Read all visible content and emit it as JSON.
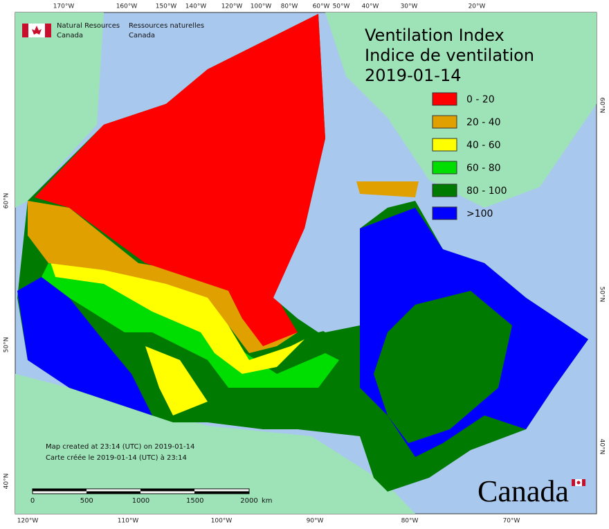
{
  "agency": {
    "en_name": "Natural Resources",
    "en_country": "Canada",
    "fr_name": "Ressources naturelles",
    "fr_country": "Canada"
  },
  "title": {
    "line1": "Ventilation Index",
    "line2": "Indice de ventilation",
    "date": "2019-01-14"
  },
  "legend": [
    {
      "label": "0 - 20",
      "color": "#ff0000"
    },
    {
      "label": "20 - 40",
      "color": "#e0a000"
    },
    {
      "label": "40 - 60",
      "color": "#ffff00"
    },
    {
      "label": "60 - 80",
      "color": "#00dd00"
    },
    {
      "label": "80 - 100",
      "color": "#007a00"
    },
    {
      "label": ">100",
      "color": "#0000ff"
    }
  ],
  "graticule": {
    "top": [
      "170°W",
      "160°W",
      "150°W",
      "140°W",
      "120°W",
      "100°W",
      "80°W",
      "60°W",
      "50°W",
      "40°W",
      "30°W",
      "20°W"
    ],
    "bottom": [
      "120°W",
      "110°W",
      "100°W",
      "90°W",
      "80°W",
      "70°W"
    ],
    "left": [
      "60°N",
      "50°N",
      "40°N"
    ],
    "right": [
      "60°N",
      "50°N",
      "40°N"
    ]
  },
  "scale_bar": {
    "labels": [
      "0",
      "500",
      "1000",
      "1500",
      "2000"
    ],
    "unit": "km"
  },
  "credits": {
    "en": "Map created at 23:14 (UTC) on 2019-01-14",
    "fr": "Carte créée le 2019-01-14 (UTC) à 23:14"
  },
  "wordmark": "Canada"
}
